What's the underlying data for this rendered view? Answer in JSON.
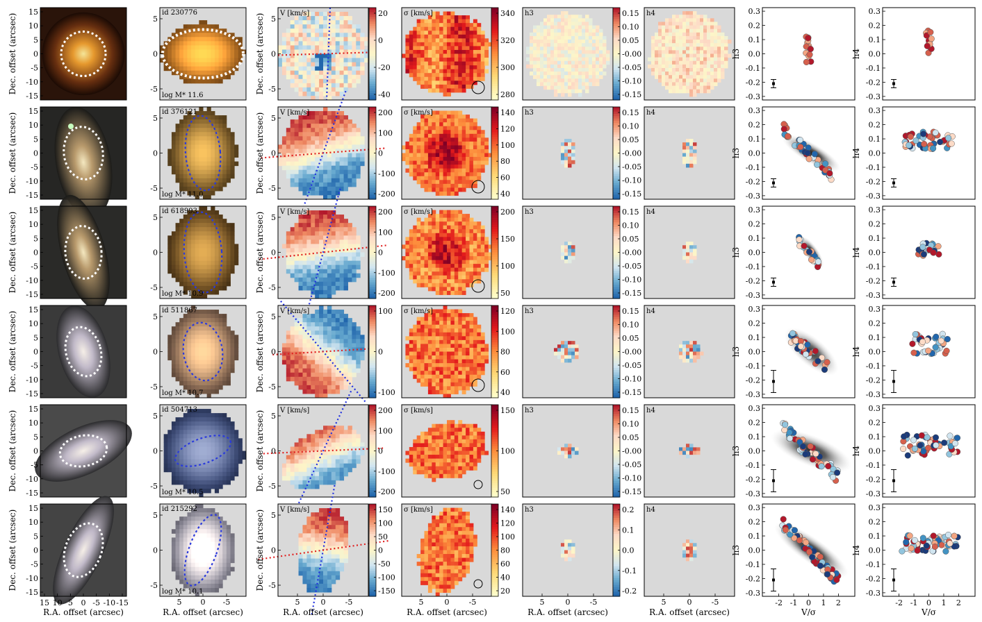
{
  "figure": {
    "rows": [
      {
        "id": "id 230776",
        "mass": "log M* 11.6",
        "V_ticks": [
          "20",
          "0",
          "-20",
          "-40"
        ],
        "S_ticks": [
          "340",
          "320",
          "300",
          "280"
        ],
        "h3_ticks": [
          "0.15",
          "0.10",
          "0.05",
          "-0.00",
          "-0.05",
          "-0.10",
          "-0.15"
        ],
        "h4_ticks": [
          "0.15",
          "0.10",
          "0.05",
          "-0.00",
          "-0.05",
          "-0.10",
          "-0.15"
        ]
      },
      {
        "id": "id 376121",
        "mass": "log M* 11.0",
        "V_ticks": [
          "200",
          "100",
          "0",
          "-100",
          "-200"
        ],
        "S_ticks": [
          "140",
          "120",
          "100",
          "80",
          "60",
          "40"
        ],
        "h3_ticks": [
          "0.15",
          "0.10",
          "0.05",
          "-0.00",
          "-0.05",
          "-0.10",
          "-0.15"
        ],
        "h4_ticks": [
          "0.15",
          "0.10",
          "0.05",
          "-0.00",
          "-0.05",
          "-0.10",
          "-0.15"
        ]
      },
      {
        "id": "id 618993",
        "mass": "log M* 10.9",
        "V_ticks": [
          "200",
          "100",
          "0",
          "-100",
          "-200"
        ],
        "S_ticks": [
          "200",
          "150",
          "100",
          "50"
        ],
        "h3_ticks": [
          "0.15",
          "0.10",
          "0.05",
          "-0.00",
          "-0.05",
          "-0.10",
          "-0.15"
        ],
        "h4_ticks": [
          "0.15",
          "0.10",
          "0.05",
          "-0.00",
          "-0.05",
          "-0.10",
          "-0.15"
        ]
      },
      {
        "id": "id 511867",
        "mass": "log M* 10.7",
        "V_ticks": [
          "100",
          "0",
          "-100"
        ],
        "S_ticks": [
          "120",
          "100",
          "80",
          "60",
          "40"
        ],
        "h3_ticks": [
          "0.15",
          "0.10",
          "0.05",
          "-0.00",
          "-0.05",
          "-0.10",
          "-0.15"
        ],
        "h4_ticks": [
          "0.15",
          "0.10",
          "0.05",
          "-0.00",
          "-0.05",
          "-0.10",
          "-0.15"
        ]
      },
      {
        "id": "id 504713",
        "mass": "log M* 10.5",
        "V_ticks": [
          "200",
          "100",
          "0",
          "-100",
          "-200"
        ],
        "S_ticks": [
          "150",
          "100",
          "50"
        ],
        "h3_ticks": [
          "0.15",
          "0.10",
          "0.05",
          "-0.00",
          "-0.05",
          "-0.10",
          "-0.15"
        ],
        "h4_ticks": [
          "0.15",
          "0.10",
          "0.05",
          "-0.00",
          "-0.05",
          "-0.10",
          "-0.15"
        ]
      },
      {
        "id": "id 215292",
        "mass": "log M* 10.1",
        "V_ticks": [
          "150",
          "100",
          "50",
          "0",
          "-50",
          "-100",
          "-150"
        ],
        "S_ticks": [
          "140",
          "120",
          "100",
          "80",
          "60",
          "40",
          "20"
        ],
        "h3_ticks": [
          "0.2",
          "0.1",
          "0.0",
          "-0.1",
          "-0.2"
        ],
        "h4_ticks": [
          "0.2",
          "0.1",
          "0.0",
          "-0.1",
          "-0.2"
        ]
      }
    ],
    "labels": {
      "dec": "Dec. offset (arcsec)",
      "ra": "R.A. offset (arcsec)",
      "V": "V [km/s]",
      "sigma": "σ [km/s]",
      "h3": "h3",
      "h4": "h4",
      "vsig": "V/σ"
    },
    "ticks": {
      "img_y": [
        "15",
        "10",
        "5",
        "0",
        "-5",
        "-10",
        "-15"
      ],
      "img_x": [
        "15",
        "10",
        "5",
        "0",
        "-5",
        "-10",
        "-15"
      ],
      "map_y": [
        "5",
        "0",
        "-5"
      ],
      "map_x": [
        "5",
        "0",
        "-5"
      ],
      "h_y": [
        "0.3",
        "0.2",
        "0.1",
        "0.0",
        "-0.1",
        "-0.2",
        "-0.3"
      ],
      "vs_x": [
        "-2",
        "-1",
        "0",
        "1",
        "2"
      ]
    }
  },
  "chart_data": {
    "type": "heatmap",
    "xlabel": "R.A. offset (arcsec)",
    "ylabel": "Dec. offset (arcsec)",
    "scatter_panels": {
      "type": "scatter",
      "xlabel": "V/σ",
      "ylabel_left": "h3",
      "ylabel_right": "h4",
      "xlim": [
        -3,
        3
      ],
      "ylim": [
        -0.3,
        0.3
      ]
    },
    "colorbar_ranges": {
      "V": [
        [
          -50,
          40
        ],
        [
          -220,
          220
        ],
        [
          -230,
          230
        ],
        [
          -170,
          150
        ],
        [
          -230,
          230
        ],
        [
          -170,
          170
        ]
      ],
      "sigma": [
        [
          265,
          350
        ],
        [
          35,
          155
        ],
        [
          30,
          210
        ],
        [
          25,
          135
        ],
        [
          15,
          185
        ],
        [
          10,
          150
        ]
      ],
      "h3": [
        [
          -0.16,
          0.16
        ],
        [
          -0.16,
          0.16
        ],
        [
          -0.16,
          0.16
        ],
        [
          -0.16,
          0.16
        ],
        [
          -0.16,
          0.16
        ],
        [
          -0.22,
          0.22
        ]
      ],
      "h4": [
        [
          -0.16,
          0.16
        ],
        [
          -0.16,
          0.16
        ],
        [
          -0.16,
          0.16
        ],
        [
          -0.16,
          0.16
        ],
        [
          -0.16,
          0.16
        ],
        [
          -0.22,
          0.22
        ]
      ]
    },
    "series": [
      {
        "name": "id 230776",
        "h3_trend": {
          "slope": 0.0,
          "v_range": [
            -0.2,
            0.2
          ],
          "center": 0.03
        },
        "h4_trend": {
          "v_range": [
            -0.2,
            0.2
          ],
          "center": 0.08
        }
      },
      {
        "name": "id 376121",
        "h3_trend": {
          "slope": -0.1,
          "v_range": [
            -1.7,
            1.6
          ],
          "center": 0.0
        },
        "h4_trend": {
          "v_range": [
            -2.1,
            2.2
          ],
          "center": 0.07
        }
      },
      {
        "name": "id 618993",
        "h3_trend": {
          "slope": -0.12,
          "v_range": [
            -0.7,
            0.7
          ],
          "center": 0.0
        },
        "h4_trend": {
          "v_range": [
            -0.4,
            0.6
          ],
          "center": 0.0
        }
      },
      {
        "name": "id 511867",
        "h3_trend": {
          "slope": -0.08,
          "v_range": [
            -1.2,
            1.3
          ],
          "center": 0.0
        },
        "h4_trend": {
          "v_range": [
            -0.8,
            1.9
          ],
          "center": 0.03
        }
      },
      {
        "name": "id 504713",
        "h3_trend": {
          "slope": -0.09,
          "v_range": [
            -1.8,
            2.0
          ],
          "center": 0.0
        },
        "h4_trend": {
          "v_range": [
            -1.9,
            2.5
          ],
          "center": 0.02
        }
      },
      {
        "name": "id 215292",
        "h3_trend": {
          "slope": -0.11,
          "v_range": [
            -1.8,
            2.0
          ],
          "center": 0.0
        },
        "h4_trend": {
          "v_range": [
            -1.9,
            2.4
          ],
          "center": 0.03
        }
      }
    ]
  }
}
